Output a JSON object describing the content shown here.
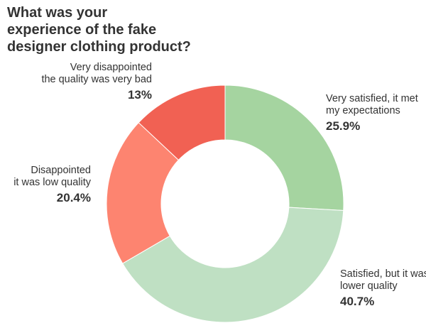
{
  "chart_data": {
    "type": "pie",
    "title": "What was your experience of the fake designer clothing product?",
    "title_lines": [
      "What was your",
      "experience of the fake",
      "designer clothing product?"
    ],
    "slices": [
      {
        "label_lines": [
          "Very satisfied, it met",
          "my expectations"
        ],
        "value": 25.9,
        "display": "25.9%",
        "color": "#a5d4a0"
      },
      {
        "label_lines": [
          "Satisfied, but it was",
          "lower quality"
        ],
        "value": 40.7,
        "display": "40.7%",
        "color": "#bfe0c3"
      },
      {
        "label_lines": [
          "Disappointed",
          "it was low quality"
        ],
        "value": 20.4,
        "display": "20.4%",
        "color": "#fd8470"
      },
      {
        "label_lines": [
          "Very disappointed",
          "the quality was very bad"
        ],
        "value": 13,
        "display": "13%",
        "color": "#f16153"
      }
    ],
    "donut": true
  }
}
